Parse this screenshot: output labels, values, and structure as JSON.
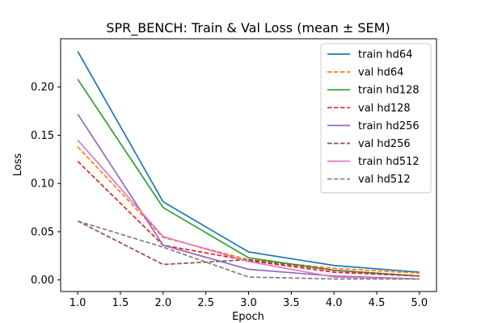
{
  "chart_data": {
    "type": "line",
    "title": "SPR_BENCH: Train & Val Loss (mean ± SEM)",
    "xlabel": "Epoch",
    "ylabel": "Loss",
    "xlim": [
      0.8,
      5.2
    ],
    "ylim": [
      -0.012,
      0.25
    ],
    "xticks": [
      1.0,
      1.5,
      2.0,
      2.5,
      3.0,
      3.5,
      4.0,
      4.5,
      5.0
    ],
    "yticks": [
      0.0,
      0.05,
      0.1,
      0.15,
      0.2
    ],
    "xtick_labels": [
      "1.0",
      "1.5",
      "2.0",
      "2.5",
      "3.0",
      "3.5",
      "4.0",
      "4.5",
      "5.0"
    ],
    "ytick_labels": [
      "0.00",
      "0.05",
      "0.10",
      "0.15",
      "0.20"
    ],
    "grid": false,
    "legend_position": "top-right",
    "x": [
      1,
      2,
      3,
      4,
      5
    ],
    "series": [
      {
        "name": "train hd64",
        "color": "#1f77b4",
        "dash": false,
        "values": [
          0.237,
          0.081,
          0.029,
          0.015,
          0.008
        ]
      },
      {
        "name": "val hd64",
        "color": "#ff7f0e",
        "dash": true,
        "values": [
          0.138,
          0.044,
          0.021,
          0.012,
          0.007
        ]
      },
      {
        "name": "train hd128",
        "color": "#2ca02c",
        "dash": false,
        "values": [
          0.208,
          0.075,
          0.023,
          0.01,
          0.004
        ]
      },
      {
        "name": "val hd128",
        "color": "#d62728",
        "dash": true,
        "values": [
          0.123,
          0.036,
          0.02,
          0.008,
          0.004
        ]
      },
      {
        "name": "train hd256",
        "color": "#9467bd",
        "dash": false,
        "values": [
          0.172,
          0.036,
          0.011,
          0.004,
          0.001
        ]
      },
      {
        "name": "val hd256",
        "color": "#8c564b",
        "dash": true,
        "values": [
          0.061,
          0.016,
          0.021,
          0.01,
          0.004
        ]
      },
      {
        "name": "train hd512",
        "color": "#e377c2",
        "dash": false,
        "values": [
          0.145,
          0.045,
          0.019,
          0.003,
          0.001
        ]
      },
      {
        "name": "val hd512",
        "color": "#7f7f7f",
        "dash": true,
        "values": [
          0.061,
          0.034,
          0.003,
          0.001,
          0.001
        ]
      }
    ]
  }
}
